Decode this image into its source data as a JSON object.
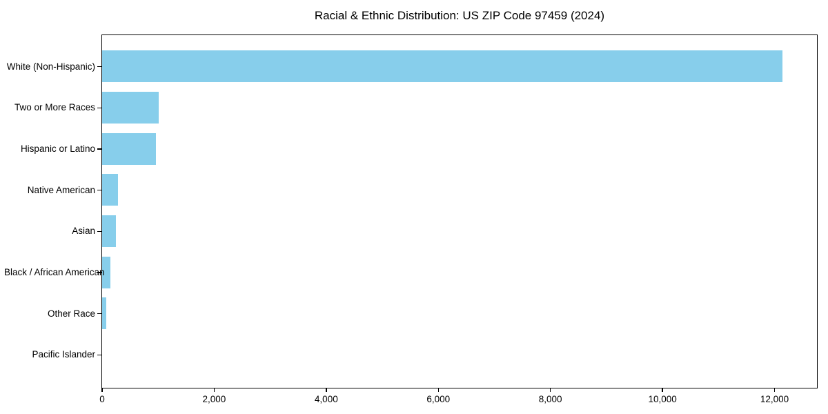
{
  "chart_data": {
    "type": "bar",
    "orientation": "horizontal",
    "title": "Racial & Ethnic Distribution: US ZIP Code 97459 (2024)",
    "categories": [
      "White (Non-Hispanic)",
      "Two or More Races",
      "Hispanic or Latino",
      "Native American",
      "Asian",
      "Black / African American",
      "Other Race",
      "Pacific Islander"
    ],
    "values": [
      12150,
      1015,
      965,
      290,
      250,
      155,
      80,
      0
    ],
    "xlabel": "",
    "ylabel": "",
    "xlim": [
      0,
      12757
    ],
    "x_tick_values": [
      0,
      2000,
      4000,
      6000,
      8000,
      10000,
      12000
    ],
    "x_tick_labels": [
      "0",
      "2,000",
      "4,000",
      "6,000",
      "8,000",
      "10,000",
      "12,000"
    ],
    "grid": false,
    "legend": null,
    "bar_color": "#87CEEB",
    "axis_color": "#000000",
    "background_color": "#FFFFFF"
  }
}
